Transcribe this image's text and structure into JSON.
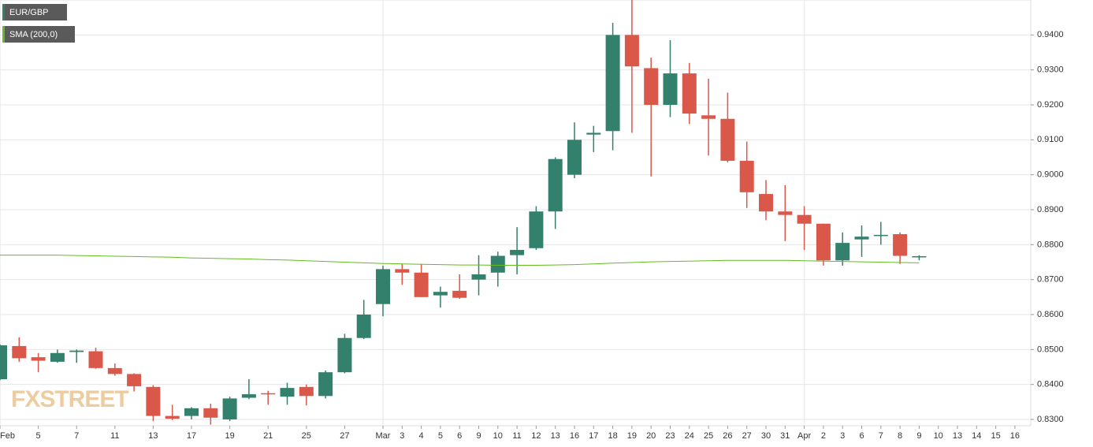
{
  "chart_data": {
    "type": "candlestick",
    "watermark": "FXSTREET",
    "up_color": "#33806c",
    "down_color": "#d9584a",
    "grid": true,
    "categories": [
      "Feb",
      null,
      "5",
      null,
      "7",
      null,
      "11",
      null,
      "13",
      null,
      "17",
      null,
      "19",
      null,
      "21",
      null,
      "25",
      null,
      "27",
      null,
      "Mar",
      "3",
      "4",
      "5",
      "6",
      "9",
      "10",
      "11",
      "12",
      "13",
      "16",
      "17",
      "18",
      "19",
      "20",
      "23",
      "24",
      "25",
      "26",
      "27",
      "30",
      "31",
      "Apr",
      "2",
      "3",
      "6",
      "7",
      "8",
      "9",
      "10",
      "13",
      "14",
      "15",
      "16"
    ],
    "series": [
      {
        "name": "EUR/GBP",
        "color": "#33806c",
        "open": [
          0.8415,
          0.851,
          0.8478,
          0.8465,
          0.8493,
          0.8495,
          0.8447,
          0.843,
          0.8393,
          0.831,
          0.831,
          0.8332,
          0.83,
          0.8362,
          0.8375,
          0.8365,
          0.8393,
          0.8367,
          0.8435,
          0.8533,
          0.863,
          0.873,
          0.872,
          0.8655,
          0.8668,
          0.87,
          0.872,
          0.877,
          0.879,
          0.8895,
          0.9,
          0.9115,
          0.9125,
          0.94,
          0.9305,
          0.92,
          0.929,
          0.917,
          0.916,
          0.904,
          0.8945,
          0.8895,
          0.8885,
          0.886,
          0.8755,
          0.8815,
          0.8825,
          0.883,
          0.8767,
          null,
          null,
          null,
          null,
          null
        ],
        "high": [
          0.8515,
          0.8535,
          0.849,
          0.85,
          0.85,
          0.8505,
          0.846,
          0.8432,
          0.8398,
          0.8342,
          0.8335,
          0.8345,
          0.8365,
          0.8415,
          0.8382,
          0.8405,
          0.84,
          0.844,
          0.8545,
          0.8642,
          0.874,
          0.8745,
          0.8745,
          0.868,
          0.8715,
          0.877,
          0.878,
          0.885,
          0.891,
          0.905,
          0.915,
          0.914,
          0.9435,
          0.95,
          0.9335,
          0.9385,
          0.932,
          0.9275,
          0.9235,
          0.9095,
          0.8985,
          0.897,
          0.891,
          0.886,
          0.8835,
          0.8855,
          0.8865,
          0.8835,
          0.877,
          null,
          null,
          null,
          null,
          null
        ],
        "low": [
          0.8412,
          0.8465,
          0.8435,
          0.8462,
          0.8462,
          0.8445,
          0.8425,
          0.838,
          0.8295,
          0.8298,
          0.83,
          0.8285,
          0.8295,
          0.8358,
          0.8342,
          0.8342,
          0.834,
          0.836,
          0.8432,
          0.853,
          0.8595,
          0.8685,
          0.865,
          0.862,
          0.8645,
          0.8655,
          0.868,
          0.8715,
          0.8785,
          0.8845,
          0.899,
          0.9065,
          0.907,
          0.912,
          0.8995,
          0.9165,
          0.9145,
          0.9055,
          0.9035,
          0.8905,
          0.887,
          0.881,
          0.8785,
          0.874,
          0.874,
          0.8765,
          0.88,
          0.8745,
          0.8755,
          null,
          null,
          null,
          null,
          null
        ],
        "close": [
          0.8512,
          0.8475,
          0.8468,
          0.849,
          0.8497,
          0.8447,
          0.843,
          0.8395,
          0.831,
          0.8302,
          0.8332,
          0.8305,
          0.836,
          0.8372,
          0.8372,
          0.839,
          0.8367,
          0.8435,
          0.8533,
          0.86,
          0.873,
          0.872,
          0.865,
          0.8665,
          0.8648,
          0.8715,
          0.8768,
          0.8785,
          0.8895,
          0.9045,
          0.91,
          0.912,
          0.94,
          0.931,
          0.92,
          0.929,
          0.9175,
          0.916,
          0.904,
          0.895,
          0.8895,
          0.8885,
          0.886,
          0.8755,
          0.8805,
          0.8823,
          0.8828,
          0.8768,
          0.8767,
          null,
          null,
          null,
          null,
          null
        ]
      },
      {
        "name": "SMA (200,0)",
        "color": "#66bb22",
        "values": [
          0.877,
          0.877,
          0.877,
          0.877,
          0.8769,
          0.8768,
          0.8767,
          0.8766,
          0.8765,
          0.8764,
          0.8762,
          0.8761,
          0.876,
          0.8759,
          0.8757,
          0.8756,
          0.8754,
          0.8752,
          0.875,
          0.8748,
          0.8746,
          0.8745,
          0.8744,
          0.8743,
          0.8742,
          0.8742,
          0.8741,
          0.8741,
          0.8741,
          0.8742,
          0.8743,
          0.8745,
          0.8747,
          0.8749,
          0.8751,
          0.8752,
          0.8753,
          0.8754,
          0.8755,
          0.8755,
          0.8755,
          0.8755,
          0.8754,
          0.8753,
          0.8752,
          0.8751,
          0.875,
          0.8749,
          0.8748,
          null,
          null,
          null,
          null,
          null
        ]
      }
    ],
    "ylim": [
      0.8282,
      0.95
    ],
    "yticks": [
      {
        "value": 0.83,
        "label": "0.8300"
      },
      {
        "value": 0.84,
        "label": "0.8400"
      },
      {
        "value": 0.85,
        "label": "0.8500"
      },
      {
        "value": 0.86,
        "label": "0.8600"
      },
      {
        "value": 0.87,
        "label": "0.8700"
      },
      {
        "value": 0.88,
        "label": "0.8800"
      },
      {
        "value": 0.89,
        "label": "0.8900"
      },
      {
        "value": 0.9,
        "label": "0.9000"
      },
      {
        "value": 0.91,
        "label": "0.9100"
      },
      {
        "value": 0.92,
        "label": "0.9200"
      },
      {
        "value": 0.93,
        "label": "0.9300"
      },
      {
        "value": 0.94,
        "label": "0.9400"
      }
    ]
  }
}
